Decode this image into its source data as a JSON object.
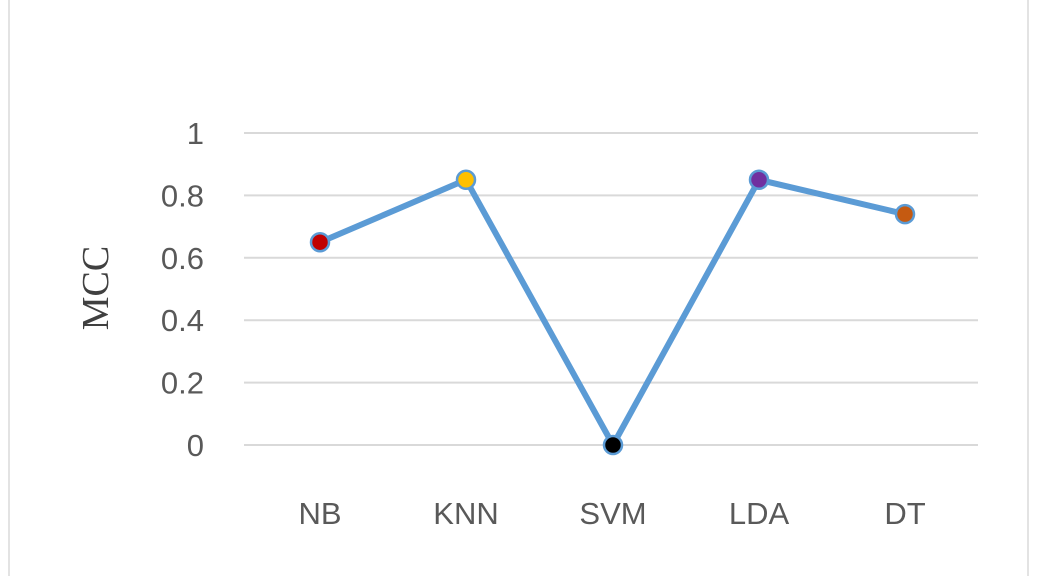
{
  "chart_data": {
    "type": "line",
    "categories": [
      "NB",
      "KNN",
      "SVM",
      "LDA",
      "DT"
    ],
    "series": [
      {
        "values": [
          0.65,
          0.85,
          0.0,
          0.85,
          0.74
        ],
        "color": "#5b9bd5",
        "marker_colors": [
          "#c00000",
          "#ffc000",
          "#000000",
          "#7030a0",
          "#c55a11"
        ]
      }
    ],
    "yticks": [
      "0",
      "0.2",
      "0.4",
      "0.6",
      "0.8",
      "1"
    ],
    "ytick_values": [
      0,
      0.2,
      0.4,
      0.6,
      0.8,
      1
    ],
    "ylabel": "MCC",
    "xlabel": "",
    "title": "",
    "ylim": [
      0,
      1
    ],
    "grid": true,
    "legend": "none"
  }
}
